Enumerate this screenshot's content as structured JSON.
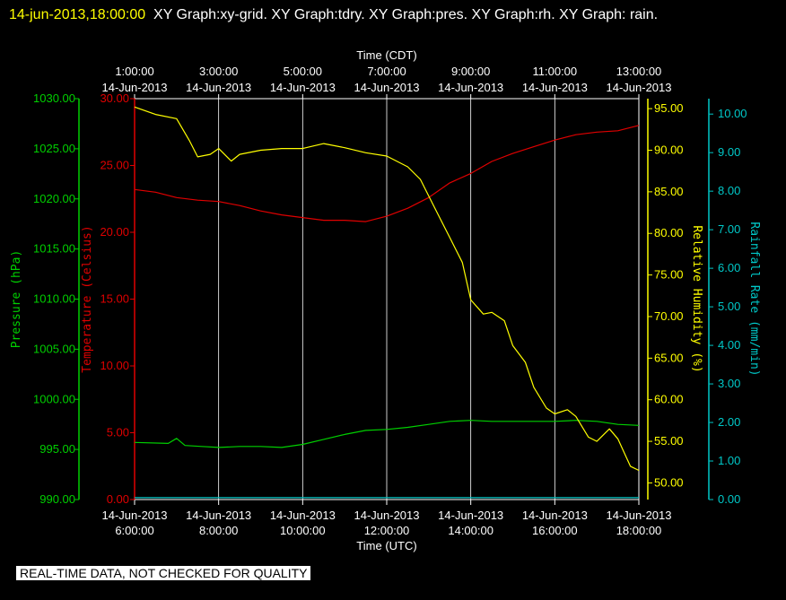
{
  "title": {
    "timestamp": "14-jun-2013,18:00:00",
    "text": "XY Graph:xy-grid.  XY Graph:tdry.  XY Graph:pres.  XY Graph:rh.  XY Graph: rain."
  },
  "disclaimer": "REAL-TIME DATA, NOT CHECKED FOR QUALITY",
  "colors": {
    "background": "#000000",
    "grid": "#ffffff",
    "pressure": "#00d000",
    "temperature": "#e00000",
    "humidity": "#ffff00",
    "rainfall": "#00c8c8"
  },
  "chart_data": {
    "type": "line",
    "grid": true,
    "x_bottom": {
      "label": "Time (UTC)",
      "range_hours": [
        6.0,
        18.0
      ],
      "ticks": [
        {
          "hour": 6,
          "date": "14-Jun-2013",
          "time": "6:00:00"
        },
        {
          "hour": 8,
          "date": "14-Jun-2013",
          "time": "8:00:00"
        },
        {
          "hour": 10,
          "date": "14-Jun-2013",
          "time": "10:00:00"
        },
        {
          "hour": 12,
          "date": "14-Jun-2013",
          "time": "12:00:00"
        },
        {
          "hour": 14,
          "date": "14-Jun-2013",
          "time": "14:00:00"
        },
        {
          "hour": 16,
          "date": "14-Jun-2013",
          "time": "16:00:00"
        },
        {
          "hour": 18,
          "date": "14-Jun-2013",
          "time": "18:00:00"
        }
      ]
    },
    "x_top": {
      "label": "Time (CDT)",
      "ticks": [
        {
          "hour": 6,
          "time": "1:00:00",
          "date": "14-Jun-2013"
        },
        {
          "hour": 8,
          "time": "3:00:00",
          "date": "14-Jun-2013"
        },
        {
          "hour": 10,
          "time": "5:00:00",
          "date": "14-Jun-2013"
        },
        {
          "hour": 12,
          "time": "7:00:00",
          "date": "14-Jun-2013"
        },
        {
          "hour": 14,
          "time": "9:00:00",
          "date": "14-Jun-2013"
        },
        {
          "hour": 16,
          "time": "11:00:00",
          "date": "14-Jun-2013"
        },
        {
          "hour": 18,
          "time": "13:00:00",
          "date": "14-Jun-2013"
        }
      ]
    },
    "axes": {
      "pressure": {
        "label": "Pressure (hPa)",
        "ylim": [
          990,
          1030
        ],
        "ticks": [
          "990.00",
          "995.00",
          "1000.00",
          "1005.00",
          "1010.00",
          "1015.00",
          "1020.00",
          "1025.00",
          "1030.00"
        ]
      },
      "temperature": {
        "label": "Temperature (Celsius)",
        "ylim": [
          0,
          30
        ],
        "ticks": [
          "0.00",
          "5.00",
          "10.00",
          "15.00",
          "20.00",
          "25.00",
          "30.00"
        ]
      },
      "humidity": {
        "label": "Relative Humidity (%)",
        "ylim": [
          48,
          96.2
        ],
        "ticks": [
          "50.00",
          "55.00",
          "60.00",
          "65.00",
          "70.00",
          "75.00",
          "80.00",
          "85.00",
          "90.00",
          "95.00"
        ]
      },
      "rainfall": {
        "label": "Rainfall Rate (mm/min)",
        "ylim": [
          0,
          10.4
        ],
        "ticks": [
          "0.00",
          "1.00",
          "2.00",
          "3.00",
          "4.00",
          "5.00",
          "6.00",
          "7.00",
          "8.00",
          "9.00",
          "10.00"
        ]
      }
    },
    "series": [
      {
        "axis": "temperature",
        "x": [
          6.0,
          6.5,
          7.0,
          7.5,
          8.0,
          8.5,
          9.0,
          9.5,
          10.0,
          10.5,
          11.0,
          11.5,
          12.0,
          12.5,
          13.0,
          13.5,
          14.0,
          14.5,
          15.0,
          15.5,
          16.0,
          16.5,
          17.0,
          17.5,
          18.0
        ],
        "y": [
          23.2,
          23.0,
          22.6,
          22.4,
          22.3,
          22.0,
          21.6,
          21.3,
          21.1,
          20.9,
          20.9,
          20.8,
          21.2,
          21.8,
          22.6,
          23.7,
          24.4,
          25.3,
          25.9,
          26.4,
          26.9,
          27.3,
          27.5,
          27.6,
          28.0
        ]
      },
      {
        "axis": "pressure",
        "x": [
          6.0,
          6.8,
          7.0,
          7.2,
          7.6,
          8.0,
          8.5,
          9.0,
          9.5,
          10.0,
          10.5,
          11.0,
          11.5,
          12.0,
          12.5,
          13.0,
          13.5,
          14.0,
          14.5,
          15.0,
          15.5,
          16.0,
          16.5,
          17.0,
          17.5,
          18.0
        ],
        "y": [
          995.7,
          995.6,
          996.1,
          995.4,
          995.3,
          995.2,
          995.3,
          995.3,
          995.2,
          995.5,
          996.0,
          996.5,
          996.9,
          997.0,
          997.2,
          997.5,
          997.8,
          997.9,
          997.8,
          997.8,
          997.8,
          997.8,
          997.9,
          997.8,
          997.5,
          997.4
        ]
      },
      {
        "axis": "humidity",
        "x": [
          6.0,
          6.5,
          7.0,
          7.3,
          7.5,
          7.8,
          8.0,
          8.3,
          8.5,
          9.0,
          9.5,
          10.0,
          10.5,
          11.0,
          11.5,
          12.0,
          12.5,
          12.8,
          13.0,
          13.2,
          13.5,
          13.8,
          14.0,
          14.3,
          14.5,
          14.8,
          15.0,
          15.3,
          15.5,
          15.8,
          16.0,
          16.3,
          16.5,
          16.8,
          17.0,
          17.3,
          17.5,
          17.8,
          18.0
        ],
        "y": [
          95.2,
          94.3,
          93.8,
          91.2,
          89.2,
          89.5,
          90.2,
          88.7,
          89.5,
          90.0,
          90.2,
          90.2,
          90.8,
          90.3,
          89.7,
          89.3,
          88.0,
          86.5,
          84.5,
          82.5,
          79.5,
          76.5,
          72.0,
          70.3,
          70.5,
          69.5,
          66.5,
          64.5,
          61.5,
          59.0,
          58.3,
          58.8,
          58.0,
          55.5,
          55.0,
          56.5,
          55.3,
          52.0,
          51.5
        ]
      },
      {
        "axis": "rainfall",
        "x": [
          6.0,
          18.0
        ],
        "y": [
          0.05,
          0.05
        ]
      }
    ]
  }
}
